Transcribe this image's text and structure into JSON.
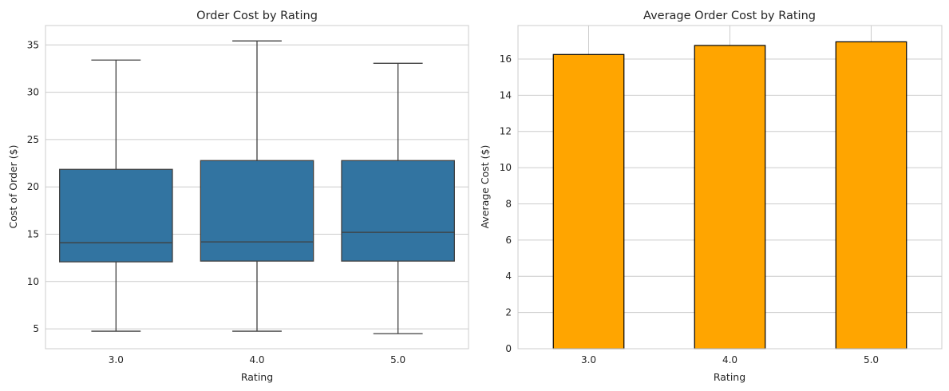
{
  "chart_data": [
    {
      "type": "box",
      "title": "Order Cost by Rating",
      "xlabel": "Rating",
      "ylabel": "Cost of Order ($)",
      "categories": [
        "3.0",
        "4.0",
        "5.0"
      ],
      "ylim": [
        2.9,
        37.05
      ],
      "yticks": [
        5,
        10,
        15,
        20,
        25,
        30,
        35
      ],
      "grid": true,
      "color": "#3274a1",
      "boxes": [
        {
          "whislo": 4.75,
          "q1": 12.08,
          "med": 14.1,
          "q3": 21.85,
          "whishi": 33.4
        },
        {
          "whislo": 4.75,
          "q1": 12.16,
          "med": 14.19,
          "q3": 22.78,
          "whishi": 35.42
        },
        {
          "whislo": 4.49,
          "q1": 12.16,
          "med": 15.2,
          "q3": 22.78,
          "whishi": 33.06
        }
      ]
    },
    {
      "type": "bar",
      "title": "Average Order Cost by Rating",
      "xlabel": "Rating",
      "ylabel": "Average Cost ($)",
      "categories": [
        "3.0",
        "4.0",
        "5.0"
      ],
      "values": [
        16.25,
        16.75,
        16.95
      ],
      "ylim": [
        0,
        17.85
      ],
      "yticks": [
        0,
        2,
        4,
        6,
        8,
        10,
        12,
        14,
        16
      ],
      "grid": true,
      "color": "#ffa500",
      "edgecolor": "#000000"
    }
  ]
}
